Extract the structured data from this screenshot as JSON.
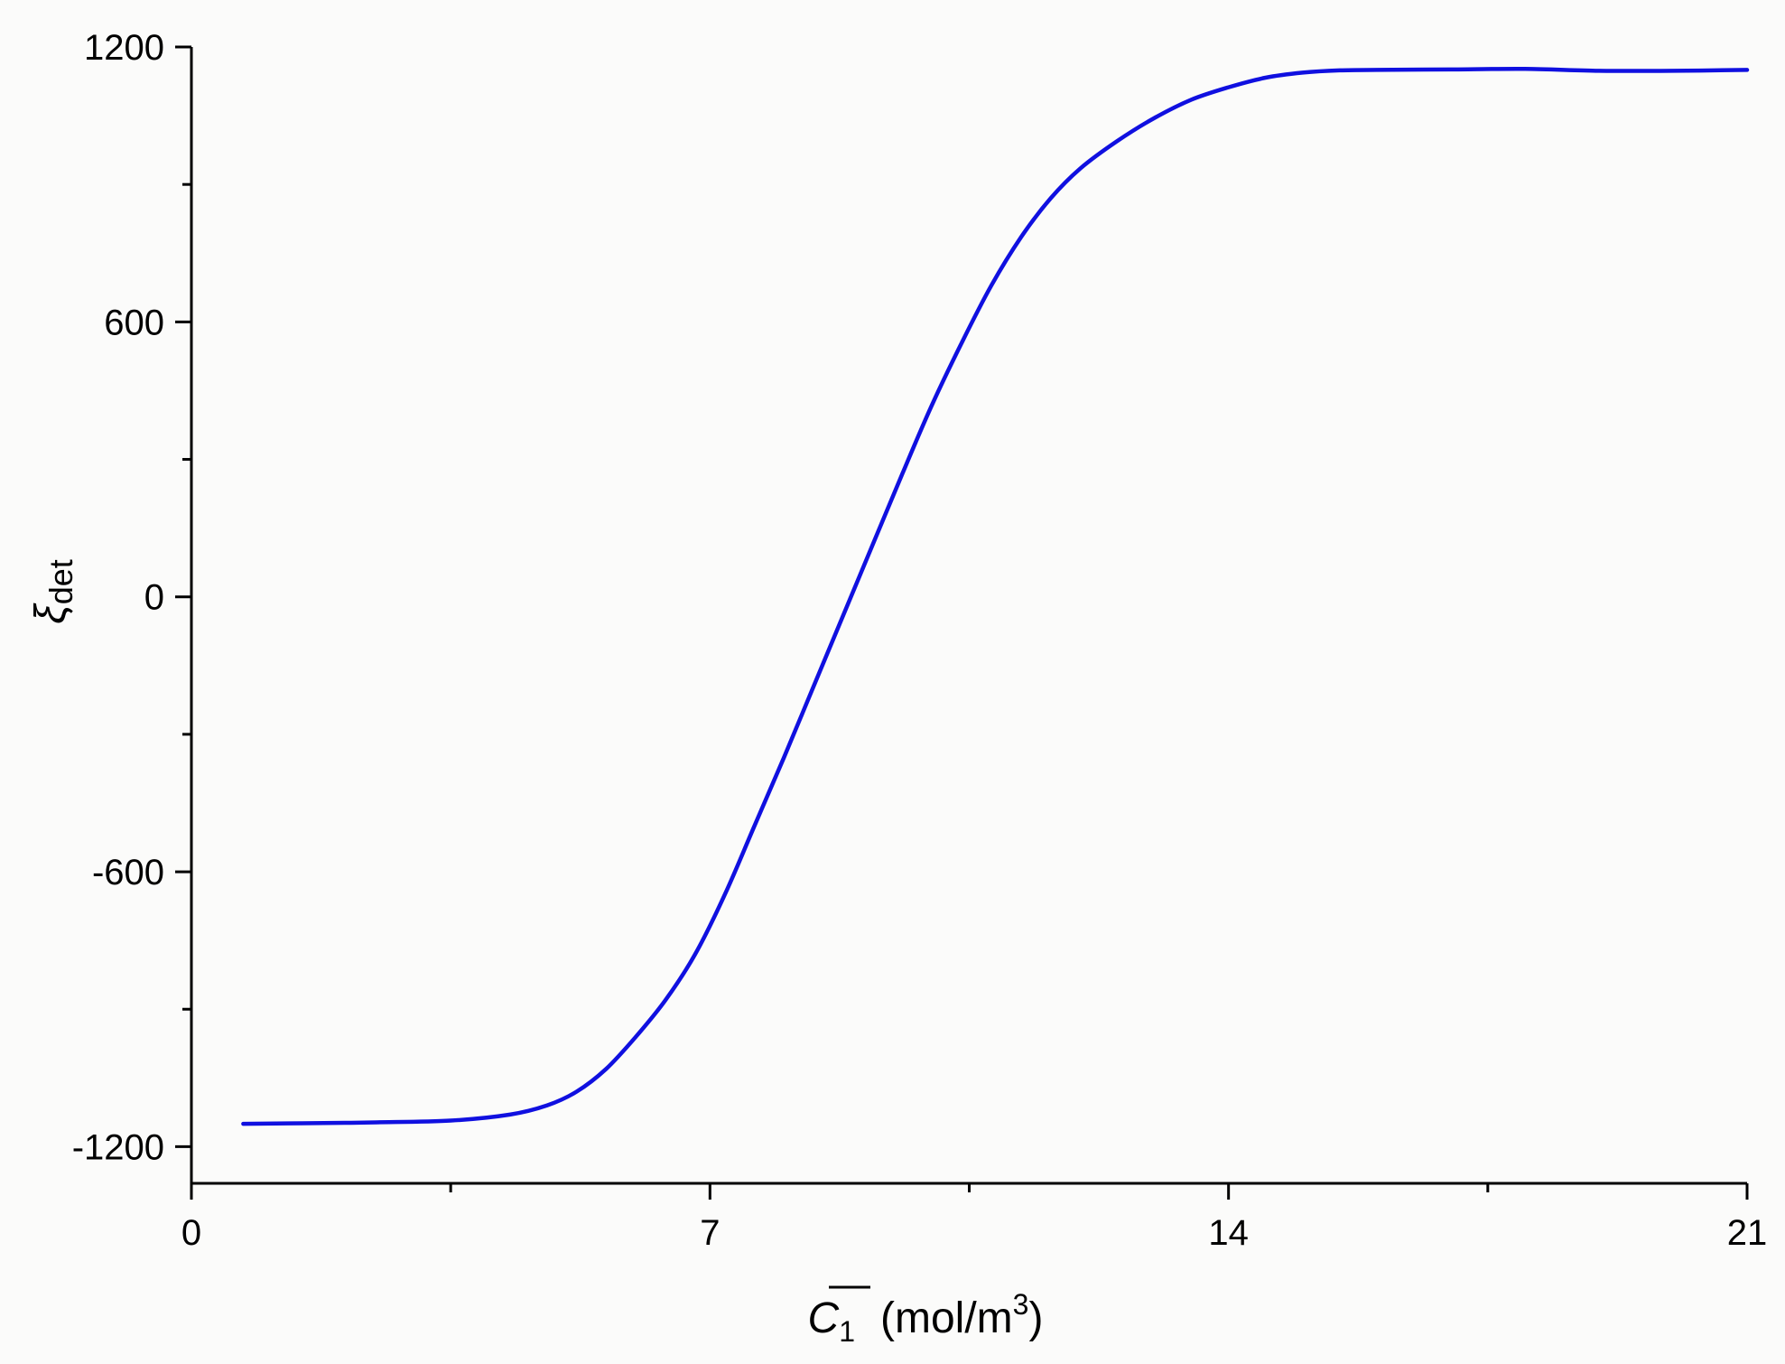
{
  "chart_data": {
    "type": "line",
    "title": "",
    "xlabel": {
      "symbol": "C",
      "subscript": "1",
      "unit_prefix": "(mol/m",
      "unit_sup": "3",
      "unit_suffix": ")"
    },
    "ylabel": {
      "symbol": "ξ",
      "subscript": "det"
    },
    "xlim": [
      0,
      21
    ],
    "ylim": [
      -1280,
      1200
    ],
    "x_ticks": [
      0,
      7,
      14,
      21
    ],
    "x_tick_labels": [
      "0",
      "7",
      "14",
      "21"
    ],
    "x_minor_ticks": [
      3.5,
      10.5,
      17.5
    ],
    "y_ticks": [
      -1200,
      -600,
      0,
      600,
      1200
    ],
    "y_tick_labels": [
      "-1200",
      "-600",
      "0",
      "600",
      "1200"
    ],
    "y_minor_ticks": [
      -900,
      -300,
      300,
      900
    ],
    "grid": false,
    "legend": "none",
    "series": [
      {
        "color": "#1010e0",
        "x": [
          0.7,
          1.5,
          2.5,
          3.5,
          4.3,
          4.8,
          5.2,
          5.6,
          6.0,
          6.4,
          6.8,
          7.2,
          7.6,
          8.0,
          8.4,
          8.8,
          9.2,
          9.6,
          10.0,
          10.4,
          10.8,
          11.2,
          11.6,
          12.0,
          12.5,
          13.0,
          13.5,
          14.0,
          14.5,
          15.0,
          15.5,
          16.0,
          17.0,
          18.0,
          19.0,
          20.0,
          21.0
        ],
        "y": [
          -1150,
          -1149,
          -1147,
          -1143,
          -1130,
          -1110,
          -1080,
          -1030,
          -960,
          -880,
          -780,
          -650,
          -500,
          -350,
          -195,
          -40,
          115,
          270,
          420,
          555,
          680,
          785,
          870,
          935,
          995,
          1045,
          1085,
          1112,
          1133,
          1144,
          1149,
          1150,
          1151,
          1152,
          1148,
          1148,
          1150
        ]
      }
    ]
  }
}
